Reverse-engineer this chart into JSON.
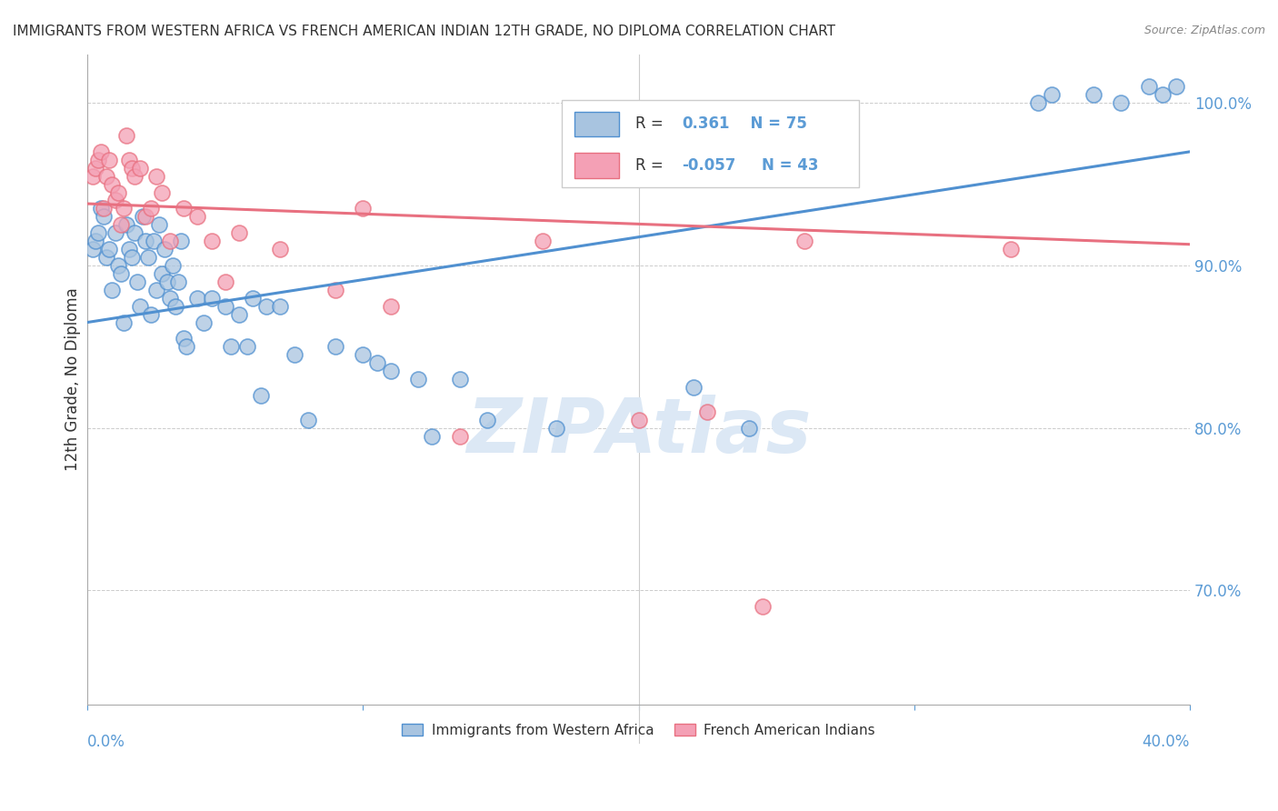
{
  "title": "IMMIGRANTS FROM WESTERN AFRICA VS FRENCH AMERICAN INDIAN 12TH GRADE, NO DIPLOMA CORRELATION CHART",
  "source": "Source: ZipAtlas.com",
  "ylabel": "12th Grade, No Diploma",
  "xlim": [
    0.0,
    40.0
  ],
  "ylim": [
    63.0,
    103.0
  ],
  "y_ticks": [
    70.0,
    80.0,
    90.0,
    100.0
  ],
  "y_tick_labels": [
    "70.0%",
    "80.0%",
    "90.0%",
    "100.0%"
  ],
  "x_ticks": [
    0.0,
    10.0,
    20.0,
    30.0,
    40.0
  ],
  "blue_R": "0.361",
  "blue_N": "75",
  "pink_R": "-0.057",
  "pink_N": "43",
  "legend_label_blue": "Immigrants from Western Africa",
  "legend_label_pink": "French American Indians",
  "blue_color": "#a8c4e0",
  "pink_color": "#f4a0b5",
  "blue_line_color": "#5090d0",
  "pink_line_color": "#e87080",
  "title_color": "#333333",
  "axis_color": "#5b9bd5",
  "watermark_color": "#dce8f5",
  "background_color": "#ffffff",
  "blue_scatter_x": [
    0.2,
    0.3,
    0.4,
    0.5,
    0.6,
    0.7,
    0.8,
    0.9,
    1.0,
    1.1,
    1.2,
    1.3,
    1.4,
    1.5,
    1.6,
    1.7,
    1.8,
    1.9,
    2.0,
    2.1,
    2.2,
    2.3,
    2.4,
    2.5,
    2.6,
    2.7,
    2.8,
    2.9,
    3.0,
    3.1,
    3.2,
    3.3,
    3.4,
    3.5,
    3.6,
    4.0,
    4.2,
    4.5,
    5.0,
    5.2,
    5.5,
    5.8,
    6.0,
    6.3,
    6.5,
    7.0,
    7.5,
    8.0,
    9.0,
    10.0,
    10.5,
    11.0,
    12.0,
    12.5,
    13.5,
    14.5,
    17.0,
    22.0,
    24.0,
    34.5,
    35.0,
    36.5,
    37.5,
    38.5,
    39.0,
    39.5
  ],
  "blue_scatter_y": [
    91.0,
    91.5,
    92.0,
    93.5,
    93.0,
    90.5,
    91.0,
    88.5,
    92.0,
    90.0,
    89.5,
    86.5,
    92.5,
    91.0,
    90.5,
    92.0,
    89.0,
    87.5,
    93.0,
    91.5,
    90.5,
    87.0,
    91.5,
    88.5,
    92.5,
    89.5,
    91.0,
    89.0,
    88.0,
    90.0,
    87.5,
    89.0,
    91.5,
    85.5,
    85.0,
    88.0,
    86.5,
    88.0,
    87.5,
    85.0,
    87.0,
    85.0,
    88.0,
    82.0,
    87.5,
    87.5,
    84.5,
    80.5,
    85.0,
    84.5,
    84.0,
    83.5,
    83.0,
    79.5,
    83.0,
    80.5,
    80.0,
    82.5,
    80.0,
    100.0,
    100.5,
    100.5,
    100.0,
    101.0,
    100.5,
    101.0
  ],
  "pink_scatter_x": [
    0.2,
    0.3,
    0.4,
    0.5,
    0.6,
    0.7,
    0.8,
    0.9,
    1.0,
    1.1,
    1.2,
    1.3,
    1.4,
    1.5,
    1.6,
    1.7,
    1.9,
    2.1,
    2.3,
    2.5,
    2.7,
    3.0,
    3.5,
    4.0,
    4.5,
    5.0,
    5.5,
    7.0,
    9.0,
    10.0,
    11.0,
    13.5,
    16.5,
    19.0,
    20.0,
    22.5,
    24.5,
    26.0,
    33.5
  ],
  "pink_scatter_y": [
    95.5,
    96.0,
    96.5,
    97.0,
    93.5,
    95.5,
    96.5,
    95.0,
    94.0,
    94.5,
    92.5,
    93.5,
    98.0,
    96.5,
    96.0,
    95.5,
    96.0,
    93.0,
    93.5,
    95.5,
    94.5,
    91.5,
    93.5,
    93.0,
    91.5,
    89.0,
    92.0,
    91.0,
    88.5,
    93.5,
    87.5,
    79.5,
    91.5,
    97.0,
    80.5,
    81.0,
    69.0,
    91.5,
    91.0
  ],
  "blue_line_x": [
    0.0,
    40.0
  ],
  "blue_line_y": [
    86.5,
    97.0
  ],
  "pink_line_x": [
    0.0,
    40.0
  ],
  "pink_line_y": [
    93.8,
    91.3
  ]
}
